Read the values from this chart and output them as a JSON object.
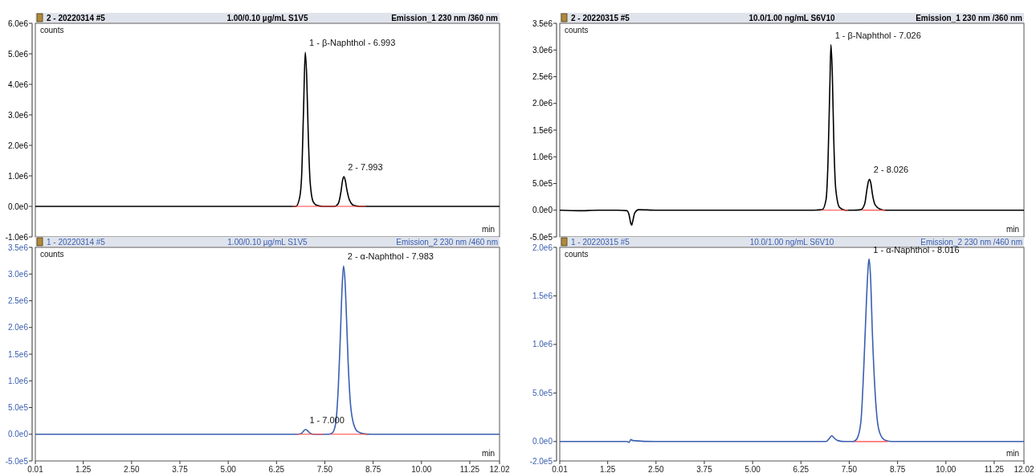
{
  "chart_data": [
    {
      "type": "line",
      "title": "2 - 20220314 #5",
      "subtitle": "1.00/0.10 µg/mL  S1V5",
      "xlabel": "min",
      "ylabel": "counts",
      "annotations": [
        "Emission_1 230 nm /360 nm",
        {
          "text": "1 - β-Naphthol - 6.993",
          "x": 6.993,
          "y": 5050000
        },
        {
          "text": "2 - 7.993",
          "x": 7.993,
          "y": 970000
        }
      ],
      "xlim": [
        0.01,
        12.02
      ],
      "ylim": [
        -1000000,
        6000000
      ],
      "yticks": [
        {
          "value": -1000000,
          "label": "-1.0e6"
        },
        {
          "value": 0,
          "label": "0.0e0"
        },
        {
          "value": 1000000,
          "label": "1.0e6"
        },
        {
          "value": 2000000,
          "label": "2.0e6"
        },
        {
          "value": 3000000,
          "label": "3.0e6"
        },
        {
          "value": 4000000,
          "label": "4.0e6"
        },
        {
          "value": 5000000,
          "label": "5.0e6"
        },
        {
          "value": 6000000,
          "label": "6.0e6"
        }
      ],
      "tick_labels": "y",
      "grid": false,
      "series": [
        {
          "color": "#000000",
          "x": [
            0.01,
            2,
            4,
            6,
            6.6,
            6.75,
            6.85,
            6.9,
            6.95,
            6.993,
            7.03,
            7.07,
            7.12,
            7.2,
            7.3,
            7.45,
            7.6,
            7.75,
            7.85,
            7.92,
            7.96,
            7.993,
            8.03,
            8.07,
            8.14,
            8.25,
            8.4,
            9,
            10.5,
            12.02
          ],
          "values": [
            0,
            0,
            0,
            0,
            0,
            0,
            300000,
            1000000,
            3200000,
            5050000,
            4300000,
            2400000,
            800000,
            150000,
            30000,
            0,
            0,
            0,
            100000,
            500000,
            860000,
            970000,
            850000,
            550000,
            200000,
            30000,
            0,
            0,
            0,
            0
          ]
        },
        {
          "color": "#ff4040",
          "x": [
            6.66,
            8.56
          ],
          "values": [
            0,
            0
          ]
        }
      ]
    },
    {
      "type": "line",
      "title": "2 - 20220315 #5",
      "subtitle": "10.0/1.00 ng/mL  S6V10",
      "xlabel": "min",
      "ylabel": "counts",
      "annotations": [
        "Emission_1 230 nm /360 nm",
        {
          "text": "1 - β-Naphthol - 7.026",
          "x": 7.026,
          "y": 3100000
        },
        {
          "text": "2 - 8.026",
          "x": 8.026,
          "y": 580000
        }
      ],
      "xlim": [
        0.01,
        12.02
      ],
      "ylim": [
        -500000,
        3500000
      ],
      "yticks": [
        {
          "value": -500000,
          "label": "-5.0e5"
        },
        {
          "value": 0,
          "label": "0.0e0"
        },
        {
          "value": 500000,
          "label": "5.0e5"
        },
        {
          "value": 1000000,
          "label": "1.0e6"
        },
        {
          "value": 1500000,
          "label": "1.5e6"
        },
        {
          "value": 2000000,
          "label": "2.0e6"
        },
        {
          "value": 2500000,
          "label": "2.5e6"
        },
        {
          "value": 3000000,
          "label": "3.0e6"
        },
        {
          "value": 3500000,
          "label": "3.5e6"
        }
      ],
      "tick_labels": "y",
      "grid": false,
      "series": [
        {
          "color": "#000000",
          "x": [
            0.01,
            0.5,
            1,
            1.5,
            1.75,
            1.8,
            1.85,
            1.87,
            1.9,
            1.95,
            2.05,
            2.5,
            3,
            3.5,
            4,
            4.5,
            5,
            5.5,
            6,
            6.5,
            6.8,
            6.9,
            6.95,
            7.0,
            7.026,
            7.06,
            7.1,
            7.15,
            7.25,
            7.4,
            7.6,
            7.8,
            7.9,
            7.96,
            8.0,
            8.026,
            8.06,
            8.1,
            8.17,
            8.3,
            8.45,
            9,
            9.5,
            10,
            10.5,
            11,
            11.5,
            12.02
          ],
          "values": [
            0,
            -10000,
            0,
            0,
            -10000,
            -80000,
            -250000,
            -280000,
            -200000,
            -50000,
            10000,
            0,
            0,
            0,
            0,
            0,
            0,
            0,
            0,
            0,
            10000,
            200000,
            900000,
            2400000,
            3100000,
            2600000,
            1300000,
            400000,
            50000,
            0,
            0,
            10000,
            120000,
            400000,
            550000,
            580000,
            500000,
            300000,
            100000,
            20000,
            0,
            0,
            0,
            0,
            0,
            0,
            0,
            0
          ]
        },
        {
          "color": "#ff4040",
          "x": [
            6.77,
            7.47
          ],
          "values": [
            0,
            0
          ]
        },
        {
          "color": "#ff4040",
          "x": [
            7.83,
            8.43
          ],
          "values": [
            0,
            0
          ]
        }
      ]
    },
    {
      "type": "line",
      "title": "1 - 20220314 #5",
      "subtitle": "1.00/0.10 µg/mL  S1V5",
      "xlabel": "min",
      "ylabel": "counts",
      "annotations": [
        "Emission_2 230 nm /460 nm",
        {
          "text": "2 - α-Naphthol - 7.983",
          "x": 7.983,
          "y": 3150000
        },
        {
          "text": "1 - 7.000",
          "x": 7.0,
          "y": 90000
        }
      ],
      "xlim": [
        0.01,
        12.02
      ],
      "ylim": [
        -500000,
        3500000
      ],
      "xticks": [
        0.01,
        1.25,
        {
          "value": 2.5,
          "label": "2.50"
        },
        3.75,
        {
          "value": 5,
          "label": "5.00"
        },
        6.25,
        {
          "value": 7.5,
          "label": "7.50"
        },
        8.75,
        {
          "value": 10,
          "label": "10.00"
        },
        11.25,
        12.02
      ],
      "yticks": [
        {
          "value": -500000,
          "label": "-5.0e5"
        },
        {
          "value": 0,
          "label": "0.0e0"
        },
        {
          "value": 500000,
          "label": "5.0e5"
        },
        {
          "value": 1000000,
          "label": "1.0e6"
        },
        {
          "value": 1500000,
          "label": "1.5e6"
        },
        {
          "value": 2000000,
          "label": "2.0e6"
        },
        {
          "value": 2500000,
          "label": "2.5e6"
        },
        {
          "value": 3000000,
          "label": "3.0e6"
        },
        {
          "value": 3500000,
          "label": "3.5e6"
        }
      ],
      "grid": false,
      "series": [
        {
          "color": "#3a5fb0",
          "x": [
            0.01,
            3,
            6,
            6.8,
            6.9,
            6.95,
            7.0,
            7.05,
            7.1,
            7.2,
            7.4,
            7.6,
            7.7,
            7.78,
            7.85,
            7.9,
            7.95,
            7.983,
            8.02,
            8.06,
            8.1,
            8.16,
            8.25,
            8.35,
            8.5,
            8.7,
            10,
            12.02
          ],
          "values": [
            0,
            0,
            0,
            0,
            20000,
            60000,
            90000,
            70000,
            30000,
            0,
            0,
            0,
            30000,
            200000,
            900000,
            1800000,
            2800000,
            3150000,
            2900000,
            2200000,
            1400000,
            600000,
            180000,
            50000,
            10000,
            0,
            0,
            0
          ]
        },
        {
          "color": "#ff4040",
          "x": [
            6.79,
            7.47
          ],
          "values": [
            0,
            0
          ]
        },
        {
          "color": "#ff4040",
          "x": [
            7.64,
            8.62
          ],
          "values": [
            0,
            0
          ]
        }
      ]
    },
    {
      "type": "line",
      "title": "1 - 20220315 #5",
      "subtitle": "10.0/1.00 ng/mL  S6V10",
      "xlabel": "min",
      "ylabel": "counts",
      "annotations": [
        "Emission_2 230 nm /460 nm",
        {
          "text": "1 - α-Naphthol - 8.016",
          "x": 8.016,
          "y": 1880000
        }
      ],
      "xlim": [
        0.01,
        12.02
      ],
      "ylim": [
        -200000,
        2000000
      ],
      "xticks": [
        0.01,
        1.25,
        {
          "value": 2.5,
          "label": "2.50"
        },
        3.75,
        {
          "value": 5,
          "label": "5.00"
        },
        6.25,
        {
          "value": 7.5,
          "label": "7.50"
        },
        8.75,
        {
          "value": 10,
          "label": "10.00"
        },
        11.25,
        12.02
      ],
      "yticks": [
        {
          "value": -200000,
          "label": "-2.0e5"
        },
        {
          "value": 0,
          "label": "0.0e0"
        },
        {
          "value": 500000,
          "label": "5.0e5"
        },
        {
          "value": 1000000,
          "label": "1.0e6"
        },
        {
          "value": 1500000,
          "label": "1.5e6"
        },
        {
          "value": 2000000,
          "label": "2.0e6"
        }
      ],
      "grid": false,
      "series": [
        {
          "color": "#3a5fb0",
          "x": [
            0.01,
            1,
            1.75,
            1.8,
            1.85,
            1.9,
            2.5,
            6.5,
            6.9,
            7.0,
            7.05,
            7.1,
            7.2,
            7.4,
            7.6,
            7.7,
            7.8,
            7.88,
            7.95,
            8.0,
            8.016,
            8.05,
            8.1,
            8.17,
            8.25,
            8.35,
            8.45,
            8.6,
            12.02
          ],
          "values": [
            0,
            0,
            0,
            -10000,
            20000,
            10000,
            0,
            0,
            0,
            40000,
            60000,
            40000,
            10000,
            0,
            0,
            30000,
            200000,
            800000,
            1500000,
            1850000,
            1880000,
            1700000,
            1100000,
            500000,
            150000,
            40000,
            10000,
            0,
            0
          ]
        },
        {
          "color": "#ff4040",
          "x": [
            7.63,
            8.5
          ],
          "values": [
            0,
            0
          ]
        }
      ]
    }
  ]
}
